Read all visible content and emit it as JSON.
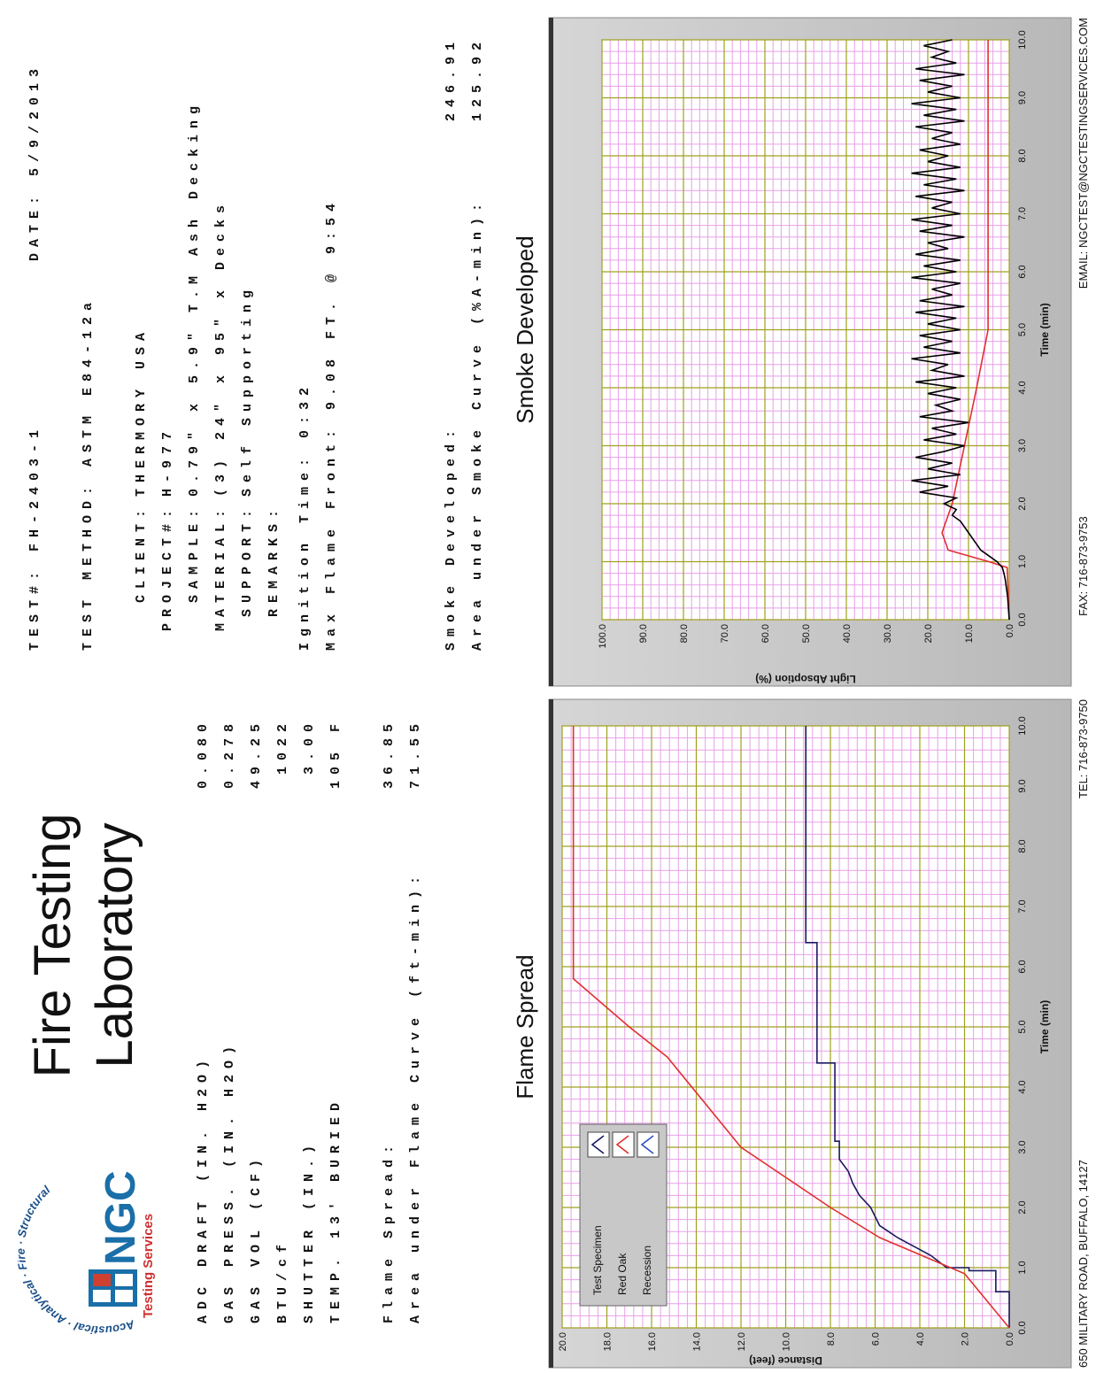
{
  "logo": {
    "ring": "Acoustical · Analytical · Fire · Structural",
    "name": "NGC",
    "tagline": "Testing Services"
  },
  "title": [
    "Fire Testing",
    "Laboratory"
  ],
  "conditions": [
    {
      "label": "ADC DRAFT (IN. H2O)",
      "value": "0.080"
    },
    {
      "label": "GAS PRESS. (IN. H2O)",
      "value": "0.278"
    },
    {
      "label": "GAS VOL (CF)",
      "value": "49.25"
    },
    {
      "label": "BTU/cf",
      "value": "1022"
    },
    {
      "label": "SHUTTER (IN.)",
      "value": "3.00"
    },
    {
      "label": "TEMP. 13' BURIED",
      "value": "105 F"
    }
  ],
  "flame_results": [
    {
      "label": "Flame Spread:",
      "value": "36.85"
    },
    {
      "label": "Area under Flame Curve (ft-min):",
      "value": "71.55"
    }
  ],
  "test_info": {
    "test": "TEST#: FH-2403-1",
    "date": "DATE: 5/9/2013",
    "method": "TEST METHOD: ASTM E84-12a",
    "fields": [
      {
        "label": "CLIENT:",
        "value": "THERMORY USA"
      },
      {
        "label": "PROJECT#:",
        "value": "H-977"
      },
      {
        "label": "SAMPLE:",
        "value": "0.79\" x 5.9\" T.M Ash Decking"
      },
      {
        "label": "MATERIAL:",
        "value": "(3) 24\" x 95\" x Decks"
      },
      {
        "label": "SUPPORT:",
        "value": "Self Supporting"
      },
      {
        "label": "REMARKS:"
      }
    ],
    "ignition": "Ignition Time: 0:32",
    "max_flame": "Max Flame Front: 9.08 FT. @ 9:54"
  },
  "smoke_results": [
    {
      "label": "Smoke Developed:",
      "value": "246.91"
    },
    {
      "label": "Area under Smoke Curve (%A-min):",
      "value": "125.92"
    }
  ],
  "footer": [
    "650 MILITARY ROAD, BUFFALO, 14127",
    "TEL: 716-873-9750",
    "FAX: 716-873-9753",
    "EMAIL: NGCTEST@NGCTESTINGSERVICES.COM"
  ],
  "chart_data": [
    {
      "type": "line",
      "title": "Flame Spread",
      "xlabel": "Time (min)",
      "ylabel": "Distance (feet)",
      "legend": "top-left",
      "grid": true,
      "xlim": [
        0,
        10
      ],
      "ylim": [
        0,
        20
      ],
      "xticks": [
        {
          "value": 0,
          "label": "0.0"
        },
        {
          "value": 1,
          "label": "1.0"
        },
        {
          "value": 2,
          "label": "2.0"
        },
        {
          "value": 3,
          "label": "3.0"
        },
        {
          "value": 4,
          "label": "4.0"
        },
        {
          "value": 5,
          "label": "5.0"
        },
        {
          "value": 6,
          "label": "6.0"
        },
        {
          "value": 7,
          "label": "7.0"
        },
        {
          "value": 8,
          "label": "8.0"
        },
        {
          "value": 9,
          "label": "9.0"
        },
        {
          "value": 10,
          "label": "10.0"
        }
      ],
      "yticks": [
        {
          "value": 0,
          "label": "0.0"
        },
        {
          "value": 2,
          "label": "2.0"
        },
        {
          "value": 4,
          "label": "4.0"
        },
        {
          "value": 6,
          "label": "6.0"
        },
        {
          "value": 8,
          "label": "8.0"
        },
        {
          "value": 10,
          "label": "10.0"
        },
        {
          "value": 12,
          "label": "12.0"
        },
        {
          "value": 14,
          "label": "14.0"
        },
        {
          "value": 16,
          "label": "16.0"
        },
        {
          "value": 18,
          "label": "18.0"
        },
        {
          "value": 20,
          "label": "20.0"
        }
      ],
      "series": [
        {
          "name": "Test Specimen",
          "color": "#1a1a60",
          "x": [
            0,
            0.6,
            0.6,
            0.95,
            0.95,
            1.0,
            1.0,
            1.2,
            1.3,
            1.4,
            1.5,
            1.6,
            1.7,
            2.0,
            2.2,
            2.4,
            2.6,
            2.7,
            2.8,
            3.1,
            3.1,
            4.4,
            4.4,
            6.4,
            6.4,
            10
          ],
          "values": [
            0,
            0,
            0.6,
            0.6,
            1.8,
            1.8,
            2.8,
            3.5,
            4.0,
            4.5,
            5.0,
            5.4,
            5.8,
            6.2,
            6.7,
            7.0,
            7.2,
            7.4,
            7.6,
            7.6,
            7.8,
            7.8,
            8.6,
            8.6,
            9.1,
            9.1
          ]
        },
        {
          "name": "Red Oak",
          "color": "#e03030",
          "x": [
            0,
            0.9,
            1.5,
            2,
            3,
            4.5,
            5,
            5.8,
            10
          ],
          "values": [
            0,
            2,
            5.8,
            8,
            12,
            15.3,
            17,
            19.5,
            19.5
          ]
        },
        {
          "name": "Recession",
          "color": "#3050c0",
          "x": [],
          "values": []
        }
      ]
    },
    {
      "type": "line",
      "title": "Smoke Developed",
      "xlabel": "Time (min)",
      "ylabel": "Light Absoption (%)",
      "grid": true,
      "xlim": [
        0,
        10
      ],
      "ylim": [
        0,
        100
      ],
      "xticks": [
        {
          "value": 0,
          "label": "0.0"
        },
        {
          "value": 1,
          "label": "1.0"
        },
        {
          "value": 2,
          "label": "2.0"
        },
        {
          "value": 3,
          "label": "3.0"
        },
        {
          "value": 4,
          "label": "4.0"
        },
        {
          "value": 5,
          "label": "5.0"
        },
        {
          "value": 6,
          "label": "6.0"
        },
        {
          "value": 7,
          "label": "7.0"
        },
        {
          "value": 8,
          "label": "8.0"
        },
        {
          "value": 9,
          "label": "9.0"
        },
        {
          "value": 10,
          "label": "10.0"
        }
      ],
      "yticks": [
        {
          "value": 0,
          "label": "0.0"
        },
        {
          "value": 10,
          "label": "10.0"
        },
        {
          "value": 20,
          "label": "20.0"
        },
        {
          "value": 30,
          "label": "30.0"
        },
        {
          "value": 40,
          "label": "40.0"
        },
        {
          "value": 50,
          "label": "50.0"
        },
        {
          "value": 60,
          "label": "60.0"
        },
        {
          "value": 70,
          "label": "70.0"
        },
        {
          "value": 80,
          "label": "80.0"
        },
        {
          "value": 90,
          "label": "90.0"
        },
        {
          "value": 100,
          "label": "100.0"
        }
      ],
      "series": [
        {
          "color": "#e03030",
          "x": [
            0,
            0.9,
            1.0,
            1.2,
            1.5,
            2,
            3,
            4,
            5,
            10
          ],
          "values": [
            0,
            0.5,
            5,
            15,
            16.5,
            14,
            11,
            8,
            5.2,
            5.2
          ]
        },
        {
          "color": "#000000",
          "x": [
            0,
            0.1,
            0.2,
            0.3,
            0.4,
            0.5,
            0.6,
            0.7,
            0.8,
            0.9,
            1.0,
            1.1,
            1.2,
            1.3,
            1.4,
            1.5,
            1.6,
            1.7,
            1.8,
            1.9,
            2.0,
            2.1,
            2.2,
            2.3,
            2.4,
            2.5,
            2.6,
            2.7,
            2.8,
            2.9,
            3.0,
            3.1,
            3.2,
            3.3,
            3.4,
            3.5,
            3.6,
            3.7,
            3.8,
            3.9,
            4.0,
            4.1,
            4.2,
            4.3,
            4.4,
            4.5,
            4.6,
            4.7,
            4.8,
            4.9,
            5.0,
            5.1,
            5.2,
            5.3,
            5.4,
            5.5,
            5.6,
            5.7,
            5.8,
            5.9,
            6.0,
            6.1,
            6.2,
            6.3,
            6.4,
            6.5,
            6.6,
            6.7,
            6.8,
            6.9,
            7.0,
            7.1,
            7.2,
            7.3,
            7.4,
            7.5,
            7.6,
            7.7,
            7.8,
            7.9,
            8.0,
            8.1,
            8.2,
            8.3,
            8.4,
            8.5,
            8.6,
            8.7,
            8.8,
            8.9,
            9.0,
            9.1,
            9.2,
            9.3,
            9.4,
            9.5,
            9.6,
            9.7,
            9.8,
            9.9,
            10.0
          ],
          "values": [
            0,
            0.1,
            0.2,
            0.3,
            0.4,
            0.6,
            0.8,
            1,
            1.3,
            1.7,
            3,
            5,
            7,
            8,
            9,
            10,
            11,
            12,
            14,
            13,
            16,
            13,
            22,
            15,
            24,
            12,
            20,
            14,
            23,
            16,
            11,
            21,
            13,
            19,
            10,
            22,
            14,
            18,
            12,
            20,
            13,
            23,
            11,
            19,
            15,
            24,
            12,
            21,
            14,
            22,
            12,
            20,
            13,
            23,
            11,
            22,
            14,
            19,
            12,
            24,
            13,
            21,
            12,
            23,
            15,
            20,
            11,
            22,
            14,
            24,
            12,
            19,
            14,
            23,
            11,
            21,
            13,
            24,
            12,
            20,
            15,
            22,
            12,
            19,
            14,
            23,
            11,
            21,
            13,
            24,
            12,
            20,
            14,
            22,
            11,
            23,
            13,
            19,
            15,
            21,
            14
          ]
        }
      ]
    }
  ]
}
